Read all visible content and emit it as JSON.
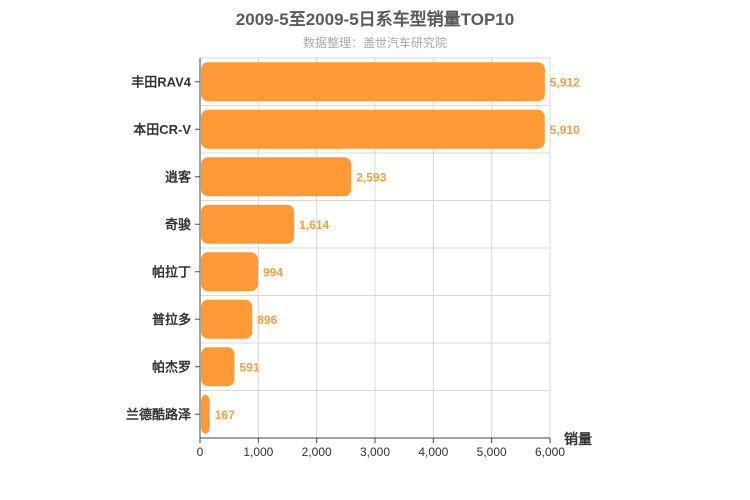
{
  "chart_data": {
    "type": "bar",
    "orientation": "horizontal",
    "title": "2009-5至2009-5日系车型销量TOP10",
    "subtitle": "数据整理：盖世汽车研究院",
    "categories": [
      "丰田RAV4",
      "本田CR-V",
      "逍客",
      "奇骏",
      "帕拉丁",
      "普拉多",
      "帕杰罗",
      "兰德酷路泽"
    ],
    "values": [
      5912,
      5910,
      2593,
      1614,
      994,
      896,
      591,
      167
    ],
    "value_labels": [
      "5,912",
      "5,910",
      "2,593",
      "1,614",
      "994",
      "896",
      "591",
      "167"
    ],
    "xlabel": "销量",
    "ylabel": "",
    "xlim": [
      0,
      6000
    ],
    "xticks": [
      0,
      1000,
      2000,
      3000,
      4000,
      5000,
      6000
    ],
    "xtick_labels": [
      "0",
      "1,000",
      "2,000",
      "3,000",
      "4,000",
      "5,000",
      "6,000"
    ],
    "grid": true,
    "legend": "none",
    "bar_color": "#ff9933",
    "label_color": "#f0a040"
  }
}
